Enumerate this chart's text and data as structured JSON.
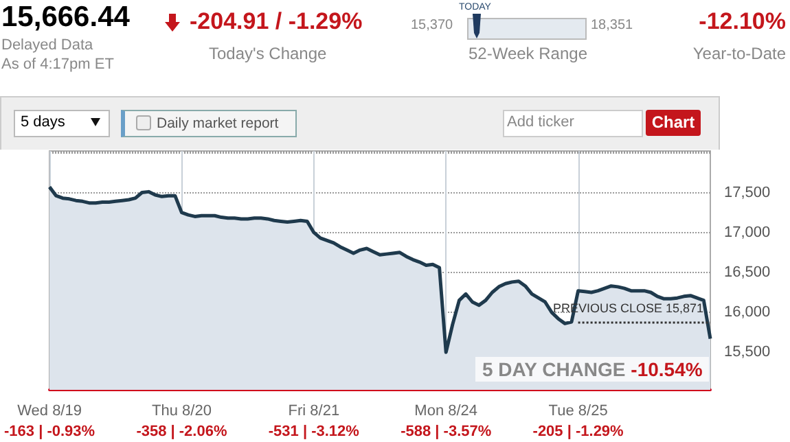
{
  "chart_data": {
    "type": "area",
    "title": "15,666.44",
    "subtitle": "Delayed Data",
    "annotations": [
      "-204.91 / -1.29%",
      "Today's Change",
      "TODAY",
      "15,370",
      "18,351",
      "52-Week Range",
      "-12.10%",
      "Year-to-Date",
      "5 days",
      "Daily market report",
      "Add ticker",
      "Chart",
      "-163 | -0.93%",
      "-358 | -2.06%",
      "-531 | -3.12%",
      "-588 | -3.57%",
      "-205 | -1.29%",
      "5 DAY CHANGE",
      "-10.54%",
      "As of 4:17pm ET"
    ],
    "categories": [
      "Wed 8/19",
      null,
      null,
      null,
      null,
      null,
      null,
      null,
      null,
      null,
      null,
      null,
      null,
      null,
      null,
      null,
      null,
      null,
      null,
      null,
      "Thu 8/20",
      null,
      null,
      null,
      null,
      null,
      null,
      null,
      null,
      null,
      null,
      null,
      null,
      null,
      null,
      null,
      null,
      null,
      null,
      null,
      "Fri 8/21",
      null,
      null,
      null,
      null,
      null,
      null,
      null,
      null,
      null,
      null,
      null,
      null,
      null,
      null,
      null,
      null,
      null,
      null,
      null,
      "Mon 8/24",
      null,
      null,
      null,
      null,
      null,
      null,
      null,
      null,
      null,
      null,
      null,
      null,
      null,
      null,
      null,
      null,
      null,
      null,
      null,
      "Tue 8/25",
      null,
      null,
      null,
      null,
      null,
      null,
      null,
      null,
      null,
      null,
      null,
      null,
      null,
      null,
      null,
      null,
      null,
      null,
      null,
      null
    ],
    "series": [
      {
        "color": "#1f3a4d",
        "values": [
          17570,
          17460,
          17430,
          17420,
          17400,
          17390,
          17370,
          17370,
          17380,
          17380,
          17390,
          17400,
          17410,
          17430,
          17500,
          17510,
          17470,
          17450,
          17460,
          17460,
          17250,
          17220,
          17200,
          17210,
          17210,
          17210,
          17190,
          17180,
          17180,
          17170,
          17170,
          17180,
          17180,
          17170,
          17150,
          17140,
          17130,
          17140,
          17150,
          17140,
          17000,
          16930,
          16900,
          16870,
          16820,
          16780,
          16740,
          16780,
          16800,
          16760,
          16720,
          16730,
          16740,
          16750,
          16700,
          16660,
          16630,
          16590,
          16600,
          16560,
          15500,
          15850,
          16150,
          16230,
          16130,
          16090,
          16150,
          16250,
          16320,
          16360,
          16380,
          16390,
          16330,
          16230,
          16180,
          16130,
          16000,
          15920,
          15860,
          15880,
          16270,
          16260,
          16250,
          16270,
          16300,
          16330,
          16320,
          16300,
          16270,
          16270,
          16270,
          16250,
          16200,
          16170,
          16170,
          16180,
          16200,
          16210,
          16180,
          16150,
          15670
        ]
      }
    ],
    "ylim": [
      15030,
      18020
    ],
    "yticks": [
      {
        "value": 15500,
        "label": "15,500"
      },
      {
        "value": 16000,
        "label": "16,000"
      },
      {
        "value": 16500,
        "label": "16,500"
      },
      {
        "value": 17000,
        "label": "17,000"
      },
      {
        "value": 17500,
        "label": "17,500"
      }
    ],
    "ref_lines": [
      {
        "axis": "y",
        "value": 15871,
        "label": "PREVIOUS CLOSE 15,871",
        "color": "#333333",
        "line_style": "dotted"
      }
    ],
    "grid": true,
    "marker": "none",
    "line_style": "solid"
  }
}
